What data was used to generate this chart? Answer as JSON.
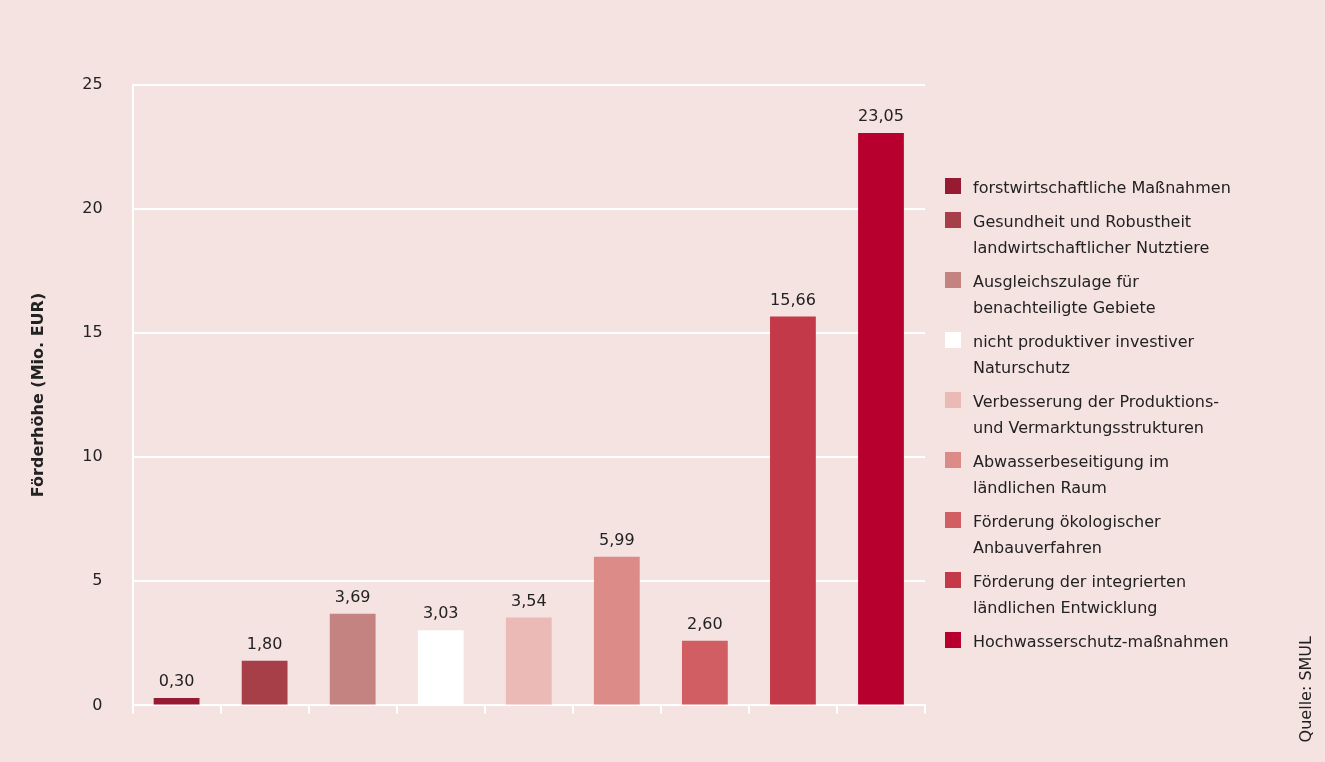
{
  "chart_data": {
    "type": "bar",
    "ylabel": "Förderhöhe (Mio. EUR)",
    "categories": [
      null,
      null,
      null,
      null,
      null,
      null,
      null,
      null,
      null
    ],
    "series": [
      {
        "name": "forstwirtschaftliche Maßnahmen",
        "color": "#961a32",
        "values": [
          0.3,
          null,
          null,
          null,
          null,
          null,
          null,
          null,
          null
        ],
        "value_labels": [
          "0,30",
          null,
          null,
          null,
          null,
          null,
          null,
          null,
          null
        ]
      },
      {
        "name": "Gesundheit und Robustheit landwirtschaftlicher Nutztiere",
        "color": "#a63f48",
        "values": [
          null,
          1.8,
          null,
          null,
          null,
          null,
          null,
          null,
          null
        ],
        "value_labels": [
          null,
          "1,80",
          null,
          null,
          null,
          null,
          null,
          null,
          null
        ]
      },
      {
        "name": "Ausgleichszulage für benachteiligte Gebiete",
        "color": "#c48381",
        "values": [
          null,
          null,
          3.69,
          null,
          null,
          null,
          null,
          null,
          null
        ],
        "value_labels": [
          null,
          null,
          "3,69",
          null,
          null,
          null,
          null,
          null,
          null
        ]
      },
      {
        "name": "nicht produktiver investiver Naturschutz",
        "color": "#ffffff",
        "values": [
          null,
          null,
          null,
          3.03,
          null,
          null,
          null,
          null,
          null
        ],
        "value_labels": [
          null,
          null,
          null,
          "3,03",
          null,
          null,
          null,
          null,
          null
        ]
      },
      {
        "name": "Verbesserung der Produktions- und Vermarktungsstrukturen",
        "color": "#ebbab6",
        "values": [
          null,
          null,
          null,
          null,
          3.54,
          null,
          null,
          null,
          null
        ],
        "value_labels": [
          null,
          null,
          null,
          null,
          "3,54",
          null,
          null,
          null,
          null
        ]
      },
      {
        "name": "Abwasserbeseitigung im ländlichen Raum",
        "color": "#dc8b89",
        "values": [
          null,
          null,
          null,
          null,
          null,
          5.99,
          null,
          null,
          null
        ],
        "value_labels": [
          null,
          null,
          null,
          null,
          null,
          "5,99",
          null,
          null,
          null
        ]
      },
      {
        "name": "Förderung ökologischer Anbauverfahren",
        "color": "#d05e62",
        "values": [
          null,
          null,
          null,
          null,
          null,
          null,
          2.6,
          null,
          null
        ],
        "value_labels": [
          null,
          null,
          null,
          null,
          null,
          null,
          "2,60",
          null,
          null
        ]
      },
      {
        "name": "Förderung der integrierten ländlichen Entwicklung",
        "color": "#c43949",
        "values": [
          null,
          null,
          null,
          null,
          null,
          null,
          null,
          15.66,
          null
        ],
        "value_labels": [
          null,
          null,
          null,
          null,
          null,
          null,
          null,
          "15,66",
          null
        ]
      },
      {
        "name": "Hochwasserschutz-maßnahmen",
        "color": "#b8002e",
        "values": [
          null,
          null,
          null,
          null,
          null,
          null,
          null,
          null,
          23.05
        ],
        "value_labels": [
          null,
          null,
          null,
          null,
          null,
          null,
          null,
          null,
          "23,05"
        ]
      }
    ],
    "ylim": [
      0,
      25
    ],
    "yticks": [
      0,
      5,
      10,
      15,
      20,
      25
    ],
    "grid": "y",
    "legend": "right",
    "annotations": [
      "Quelle: SMUL"
    ]
  }
}
